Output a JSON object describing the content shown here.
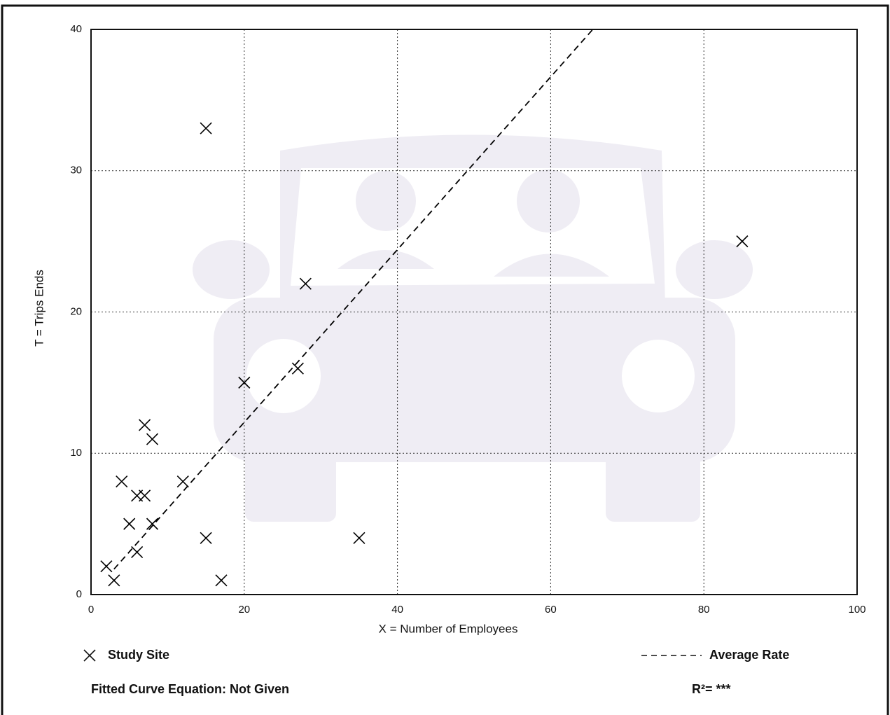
{
  "chart_data": {
    "type": "scatter",
    "x_label": "X = Number of Employees",
    "y_label": "T = Trips Ends",
    "xlim": [
      0,
      100
    ],
    "xticks": [
      0,
      20,
      40,
      60,
      80,
      100
    ],
    "ylim": [
      0,
      40
    ],
    "yticks": [
      0,
      10,
      20,
      30,
      40
    ],
    "grid": true,
    "series": [
      {
        "name": "Study Site",
        "type": "scatter",
        "color": "#000000",
        "x": [
          15,
          85,
          28,
          20,
          27,
          7,
          8,
          4,
          12,
          6,
          7,
          5,
          8,
          15,
          35,
          6,
          2,
          3,
          17
        ],
        "values": [
          33,
          25,
          22,
          15,
          16,
          12,
          11,
          8,
          8,
          7,
          7,
          5,
          5,
          4,
          4,
          3,
          2,
          1,
          1
        ]
      },
      {
        "name": "Average Rate",
        "type": "line",
        "color": "#000000",
        "x": [
          3,
          65.5
        ],
        "values": [
          1.8,
          40
        ]
      }
    ],
    "fitted_curve": "Fitted Curve Equation: Not Given",
    "r_squared": "R²= ***"
  }
}
